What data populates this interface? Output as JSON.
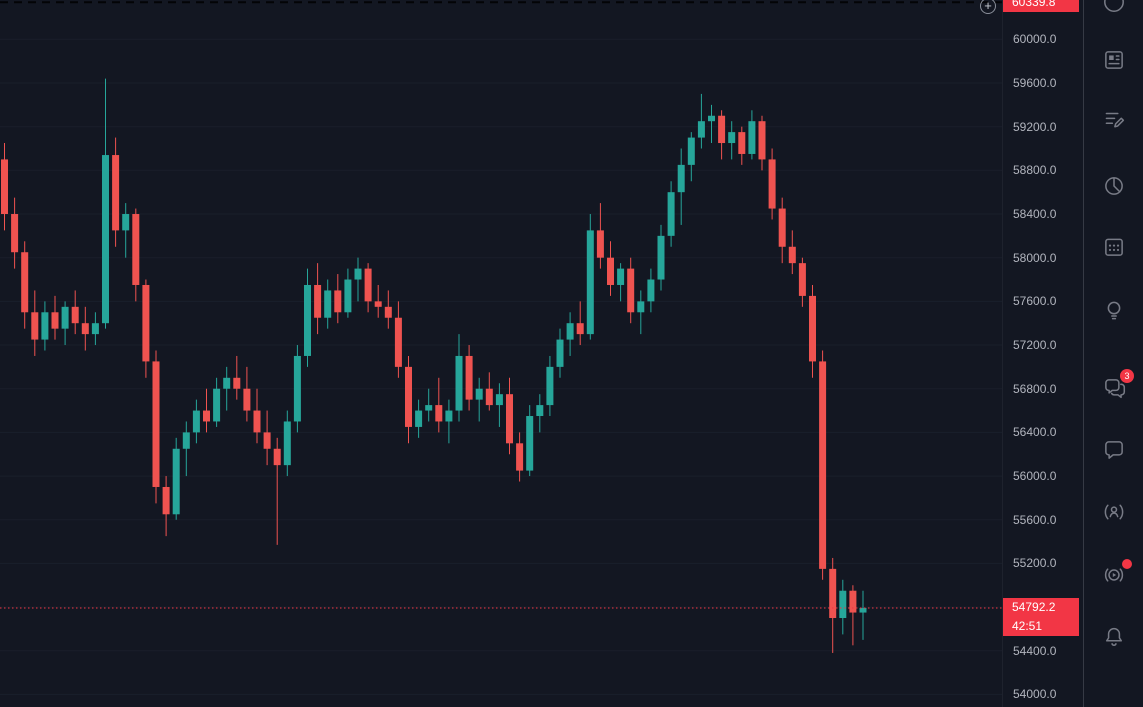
{
  "chart_data": {
    "type": "candlestick",
    "title": "",
    "xlabel": "",
    "ylabel": "Price",
    "ylim": [
      53885,
      60360
    ],
    "grid": true,
    "axis_ticks": [
      60000,
      59600,
      59200,
      58800,
      58400,
      58000,
      57600,
      57200,
      56800,
      56400,
      56000,
      55600,
      55200,
      54800,
      54400,
      54000
    ],
    "current_price": "54792.2",
    "current_price_value": 54792.2,
    "countdown": "42:51",
    "top_price_label": "60339.8",
    "top_price_value": 60339.8,
    "colors": {
      "up": "#26a69a",
      "down": "#ef5350",
      "price_label_bg": "#f23645",
      "background": "#131722",
      "axis_text": "#b2b5be",
      "grid": "#1a1f2b"
    },
    "candles": [
      [
        58900,
        59050,
        58250,
        58400
      ],
      [
        58400,
        58550,
        57900,
        58050
      ],
      [
        58050,
        58150,
        57350,
        57500
      ],
      [
        57500,
        57700,
        57100,
        57250
      ],
      [
        57250,
        57600,
        57150,
        57500
      ],
      [
        57500,
        57650,
        57250,
        57350
      ],
      [
        57350,
        57600,
        57200,
        57550
      ],
      [
        57550,
        57700,
        57300,
        57400
      ],
      [
        57400,
        57550,
        57150,
        57300
      ],
      [
        57300,
        57500,
        57200,
        57400
      ],
      [
        57400,
        59640,
        57350,
        58940
      ],
      [
        58940,
        59100,
        58100,
        58250
      ],
      [
        58250,
        58500,
        58000,
        58400
      ],
      [
        58400,
        58450,
        57600,
        57750
      ],
      [
        57750,
        57800,
        56900,
        57050
      ],
      [
        57050,
        57150,
        55750,
        55900
      ],
      [
        55900,
        56000,
        55450,
        55650
      ],
      [
        55650,
        56350,
        55600,
        56250
      ],
      [
        56250,
        56500,
        56000,
        56400
      ],
      [
        56400,
        56700,
        56300,
        56600
      ],
      [
        56600,
        56800,
        56400,
        56500
      ],
      [
        56500,
        56900,
        56450,
        56800
      ],
      [
        56800,
        57000,
        56600,
        56900
      ],
      [
        56900,
        57100,
        56700,
        56800
      ],
      [
        56800,
        57000,
        56500,
        56600
      ],
      [
        56600,
        56800,
        56300,
        56400
      ],
      [
        56400,
        56600,
        56100,
        56250
      ],
      [
        56250,
        56350,
        55370,
        56100
      ],
      [
        56100,
        56600,
        56000,
        56500
      ],
      [
        56500,
        57200,
        56400,
        57100
      ],
      [
        57100,
        57900,
        57000,
        57750
      ],
      [
        57750,
        57950,
        57300,
        57450
      ],
      [
        57450,
        57800,
        57350,
        57700
      ],
      [
        57700,
        57850,
        57400,
        57500
      ],
      [
        57500,
        57900,
        57450,
        57800
      ],
      [
        57800,
        58000,
        57600,
        57900
      ],
      [
        57900,
        57950,
        57500,
        57600
      ],
      [
        57600,
        57750,
        57450,
        57550
      ],
      [
        57550,
        57700,
        57350,
        57450
      ],
      [
        57450,
        57600,
        56900,
        57000
      ],
      [
        57000,
        57100,
        56300,
        56450
      ],
      [
        56450,
        56700,
        56350,
        56600
      ],
      [
        56600,
        56800,
        56500,
        56650
      ],
      [
        56650,
        56900,
        56400,
        56500
      ],
      [
        56500,
        56700,
        56300,
        56600
      ],
      [
        56600,
        57300,
        56500,
        57100
      ],
      [
        57100,
        57200,
        56600,
        56700
      ],
      [
        56700,
        56900,
        56500,
        56800
      ],
      [
        56800,
        56950,
        56600,
        56650
      ],
      [
        56650,
        56850,
        56450,
        56750
      ],
      [
        56750,
        56900,
        56200,
        56300
      ],
      [
        56300,
        56400,
        55950,
        56050
      ],
      [
        56050,
        56650,
        56000,
        56550
      ],
      [
        56550,
        56750,
        56400,
        56650
      ],
      [
        56650,
        57100,
        56550,
        57000
      ],
      [
        57000,
        57350,
        56900,
        57250
      ],
      [
        57250,
        57500,
        57100,
        57400
      ],
      [
        57400,
        57600,
        57200,
        57300
      ],
      [
        57300,
        58400,
        57250,
        58250
      ],
      [
        58250,
        58500,
        57900,
        58000
      ],
      [
        58000,
        58150,
        57650,
        57750
      ],
      [
        57750,
        57950,
        57600,
        57900
      ],
      [
        57900,
        58000,
        57400,
        57500
      ],
      [
        57500,
        57700,
        57300,
        57600
      ],
      [
        57600,
        57900,
        57500,
        57800
      ],
      [
        57800,
        58300,
        57700,
        58200
      ],
      [
        58200,
        58700,
        58100,
        58600
      ],
      [
        58600,
        59000,
        58300,
        58850
      ],
      [
        58850,
        59150,
        58700,
        59100
      ],
      [
        59100,
        59500,
        59000,
        59250
      ],
      [
        59250,
        59400,
        59050,
        59300
      ],
      [
        59300,
        59350,
        58900,
        59050
      ],
      [
        59050,
        59250,
        58900,
        59150
      ],
      [
        59150,
        59200,
        58850,
        58950
      ],
      [
        58950,
        59350,
        58900,
        59250
      ],
      [
        59250,
        59300,
        58800,
        58900
      ],
      [
        58900,
        59000,
        58350,
        58450
      ],
      [
        58450,
        58550,
        57950,
        58100
      ],
      [
        58100,
        58250,
        57850,
        57950
      ],
      [
        57950,
        58000,
        57550,
        57650
      ],
      [
        57650,
        57750,
        56900,
        57050
      ],
      [
        57050,
        57150,
        55050,
        55150
      ],
      [
        55150,
        55250,
        54380,
        54700
      ],
      [
        54700,
        55050,
        54550,
        54950
      ],
      [
        54950,
        55000,
        54450,
        54750
      ],
      [
        54750,
        54950,
        54500,
        54792.2
      ]
    ]
  },
  "price_axis": {
    "labels": [
      "60000.0",
      "59600.0",
      "59200.0",
      "58800.0",
      "58400.0",
      "58000.0",
      "57600.0",
      "57200.0",
      "56800.0",
      "56400.0",
      "56000.0",
      "55600.0",
      "55200.0",
      "54400.0",
      "54000.0"
    ]
  },
  "controls": {
    "plus_button": "+"
  },
  "toolbar": {
    "icons": [
      {
        "name": "partial-circle-icon"
      },
      {
        "name": "news-icon"
      },
      {
        "name": "edit-list-icon"
      },
      {
        "name": "pie-chart-icon"
      },
      {
        "name": "calendar-icon"
      },
      {
        "name": "lightbulb-icon"
      },
      {
        "name": "chats-icon",
        "badge": "3"
      },
      {
        "name": "chat-bubble-icon"
      },
      {
        "name": "streams-icon"
      },
      {
        "name": "live-streams-icon",
        "live": true
      },
      {
        "name": "bell-icon"
      }
    ]
  }
}
